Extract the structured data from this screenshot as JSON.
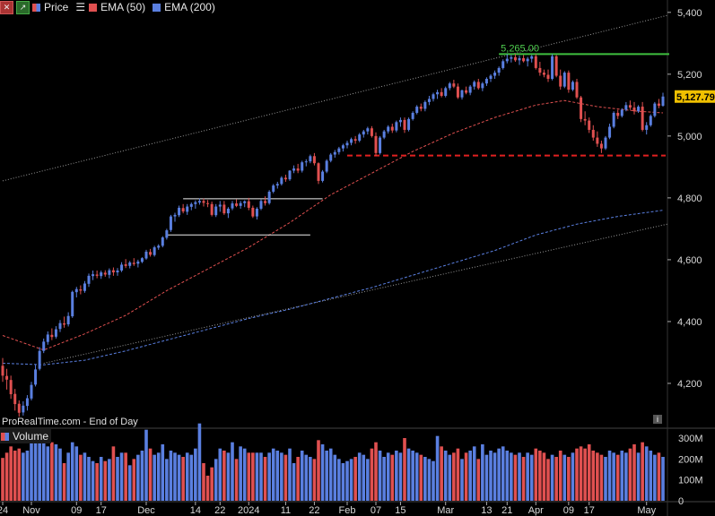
{
  "legend": {
    "price_label": "Price",
    "ema50_label": "EMA (50)",
    "ema200_label": "EMA (200)",
    "colors": {
      "up": "#5a7fe0",
      "down": "#e05050",
      "ema50": "#e05050",
      "ema200": "#5a7fe0"
    }
  },
  "watermark": "ProRealTime.com - End of Day",
  "volume_label": "Volume",
  "annotations": {
    "resistance_label": "5,265.00",
    "last_price_label": "5,127.79"
  },
  "chart_data": {
    "type": "candlestick",
    "y_ticks": [
      "5,400",
      "5,200",
      "5,000",
      "4,800",
      "4,600",
      "4,400",
      "4,200"
    ],
    "y_tick_values": [
      5400,
      5200,
      5000,
      4800,
      4600,
      4400,
      4200
    ],
    "ylim": [
      4055,
      5440
    ],
    "volume_ticks": [
      "300M",
      "200M",
      "100M",
      "0"
    ],
    "volume_tick_values": [
      300,
      200,
      100,
      0
    ],
    "x_labels": [
      "24",
      "Nov",
      "09",
      "17",
      "Dec",
      "14",
      "22",
      "2024",
      "11",
      "22",
      "Feb",
      "07",
      "15",
      "Mar",
      "13",
      "21",
      "Apr",
      "09",
      "17",
      "May"
    ],
    "x_label_bars": [
      0,
      7,
      18,
      24,
      35,
      47,
      53,
      60,
      69,
      76,
      84,
      91,
      97,
      108,
      118,
      123,
      130,
      138,
      143,
      157
    ],
    "resistance_level": 5265,
    "support_level": 4937,
    "last_price": 5127.79,
    "channel_upper": [
      {
        "bar": 0,
        "value": 4855
      },
      {
        "bar": 162,
        "value": 5390
      }
    ],
    "channel_lower": [
      {
        "bar": 10,
        "value": 4265
      },
      {
        "bar": 162,
        "value": 4715
      }
    ],
    "consolidation_box": {
      "top": 4797,
      "bottom": 4680,
      "bar_start": 40,
      "bar_end": 78
    },
    "ema50": [
      [
        0,
        4355
      ],
      [
        10,
        4308
      ],
      [
        20,
        4360
      ],
      [
        30,
        4420
      ],
      [
        40,
        4500
      ],
      [
        50,
        4570
      ],
      [
        60,
        4640
      ],
      [
        70,
        4720
      ],
      [
        80,
        4810
      ],
      [
        90,
        4880
      ],
      [
        100,
        4950
      ],
      [
        110,
        5010
      ],
      [
        120,
        5060
      ],
      [
        130,
        5100
      ],
      [
        137,
        5115
      ],
      [
        145,
        5095
      ],
      [
        155,
        5080
      ],
      [
        161,
        5075
      ]
    ],
    "ema200": [
      [
        0,
        4265
      ],
      [
        10,
        4260
      ],
      [
        20,
        4275
      ],
      [
        30,
        4305
      ],
      [
        40,
        4340
      ],
      [
        50,
        4375
      ],
      [
        60,
        4410
      ],
      [
        70,
        4440
      ],
      [
        80,
        4475
      ],
      [
        90,
        4510
      ],
      [
        100,
        4550
      ],
      [
        110,
        4590
      ],
      [
        120,
        4630
      ],
      [
        130,
        4680
      ],
      [
        140,
        4715
      ],
      [
        150,
        4740
      ],
      [
        161,
        4760
      ]
    ],
    "candles": [
      [
        4257,
        4282,
        4205,
        4225,
        205
      ],
      [
        4224,
        4247,
        4180,
        4212,
        230
      ],
      [
        4211,
        4225,
        4150,
        4165,
        260
      ],
      [
        4166,
        4182,
        4112,
        4133,
        240
      ],
      [
        4134,
        4145,
        4092,
        4105,
        250
      ],
      [
        4106,
        4142,
        4096,
        4128,
        230
      ],
      [
        4127,
        4162,
        4112,
        4152,
        240
      ],
      [
        4151,
        4205,
        4145,
        4195,
        280
      ],
      [
        4196,
        4262,
        4190,
        4245,
        290
      ],
      [
        4247,
        4317,
        4242,
        4305,
        300
      ],
      [
        4305,
        4345,
        4298,
        4335,
        290
      ],
      [
        4334,
        4368,
        4325,
        4358,
        260
      ],
      [
        4357,
        4378,
        4340,
        4350,
        280
      ],
      [
        4351,
        4385,
        4345,
        4375,
        270
      ],
      [
        4376,
        4405,
        4366,
        4395,
        250
      ],
      [
        4394,
        4416,
        4380,
        4390,
        180
      ],
      [
        4391,
        4430,
        4384,
        4418,
        230
      ],
      [
        4417,
        4500,
        4412,
        4496,
        280
      ],
      [
        4495,
        4512,
        4478,
        4505,
        260
      ],
      [
        4504,
        4517,
        4488,
        4500,
        220
      ],
      [
        4499,
        4531,
        4493,
        4523,
        230
      ],
      [
        4522,
        4555,
        4512,
        4548,
        210
      ],
      [
        4547,
        4565,
        4534,
        4553,
        190
      ],
      [
        4552,
        4565,
        4540,
        4548,
        180
      ],
      [
        4547,
        4565,
        4538,
        4559,
        210
      ],
      [
        4558,
        4566,
        4545,
        4552,
        190
      ],
      [
        4551,
        4572,
        4540,
        4566,
        200
      ],
      [
        4566,
        4575,
        4548,
        4559,
        260
      ],
      [
        4559,
        4573,
        4548,
        4565,
        210
      ],
      [
        4565,
        4592,
        4560,
        4584,
        230
      ],
      [
        4585,
        4602,
        4573,
        4580,
        230
      ],
      [
        4580,
        4596,
        4572,
        4591,
        170
      ],
      [
        4590,
        4605,
        4580,
        4586,
        200
      ],
      [
        4587,
        4600,
        4575,
        4594,
        220
      ],
      [
        4593,
        4608,
        4589,
        4605,
        240
      ],
      [
        4604,
        4632,
        4600,
        4626,
        340
      ],
      [
        4625,
        4635,
        4610,
        4616,
        250
      ],
      [
        4615,
        4645,
        4610,
        4640,
        220
      ],
      [
        4639,
        4650,
        4632,
        4645,
        230
      ],
      [
        4645,
        4676,
        4640,
        4672,
        270
      ],
      [
        4671,
        4700,
        4665,
        4695,
        200
      ],
      [
        4696,
        4745,
        4690,
        4740,
        240
      ],
      [
        4740,
        4752,
        4723,
        4745,
        230
      ],
      [
        4744,
        4775,
        4738,
        4768,
        220
      ],
      [
        4767,
        4780,
        4750,
        4756,
        210
      ],
      [
        4755,
        4780,
        4745,
        4772,
        230
      ],
      [
        4771,
        4785,
        4760,
        4780,
        220
      ],
      [
        4780,
        4792,
        4765,
        4786,
        250
      ],
      [
        4785,
        4798,
        4778,
        4790,
        370
      ],
      [
        4790,
        4798,
        4772,
        4784,
        180
      ],
      [
        4783,
        4793,
        4770,
        4780,
        120
      ],
      [
        4780,
        4788,
        4740,
        4745,
        160
      ],
      [
        4744,
        4780,
        4738,
        4772,
        200
      ],
      [
        4772,
        4790,
        4755,
        4778,
        250
      ],
      [
        4778,
        4790,
        4745,
        4750,
        240
      ],
      [
        4750,
        4770,
        4735,
        4765,
        230
      ],
      [
        4766,
        4790,
        4760,
        4782,
        280
      ],
      [
        4782,
        4795,
        4770,
        4774,
        200
      ],
      [
        4774,
        4790,
        4765,
        4783,
        260
      ],
      [
        4783,
        4792,
        4770,
        4789,
        250
      ],
      [
        4789,
        4800,
        4760,
        4768,
        230
      ],
      [
        4768,
        4775,
        4735,
        4740,
        230
      ],
      [
        4740,
        4770,
        4730,
        4765,
        230
      ],
      [
        4765,
        4795,
        4760,
        4790,
        230
      ],
      [
        4790,
        4805,
        4775,
        4783,
        210
      ],
      [
        4783,
        4825,
        4778,
        4820,
        230
      ],
      [
        4820,
        4845,
        4815,
        4840,
        250
      ],
      [
        4840,
        4852,
        4830,
        4845,
        240
      ],
      [
        4845,
        4870,
        4840,
        4865,
        230
      ],
      [
        4865,
        4875,
        4852,
        4860,
        220
      ],
      [
        4860,
        4890,
        4855,
        4888,
        250
      ],
      [
        4888,
        4905,
        4880,
        4895,
        180
      ],
      [
        4895,
        4910,
        4880,
        4888,
        210
      ],
      [
        4888,
        4920,
        4882,
        4915,
        240
      ],
      [
        4915,
        4925,
        4902,
        4918,
        220
      ],
      [
        4918,
        4940,
        4912,
        4935,
        210
      ],
      [
        4935,
        4945,
        4905,
        4912,
        200
      ],
      [
        4912,
        4915,
        4845,
        4855,
        290
      ],
      [
        4855,
        4890,
        4850,
        4885,
        270
      ],
      [
        4885,
        4925,
        4880,
        4920,
        240
      ],
      [
        4920,
        4945,
        4915,
        4940,
        250
      ],
      [
        4940,
        4955,
        4930,
        4948,
        220
      ],
      [
        4948,
        4965,
        4940,
        4960,
        200
      ],
      [
        4960,
        4975,
        4950,
        4970,
        180
      ],
      [
        4970,
        4985,
        4960,
        4978,
        190
      ],
      [
        4978,
        4995,
        4970,
        4990,
        200
      ],
      [
        4990,
        5000,
        4975,
        4985,
        210
      ],
      [
        4985,
        5010,
        4980,
        5005,
        230
      ],
      [
        5005,
        5020,
        4995,
        5015,
        220
      ],
      [
        5015,
        5030,
        5005,
        5025,
        200
      ],
      [
        5025,
        5032,
        4995,
        5000,
        250
      ],
      [
        5000,
        5012,
        4935,
        4945,
        280
      ],
      [
        4945,
        5000,
        4940,
        4995,
        240
      ],
      [
        4995,
        5020,
        4990,
        5015,
        210
      ],
      [
        5015,
        5035,
        5008,
        5030,
        230
      ],
      [
        5030,
        5040,
        5010,
        5018,
        220
      ],
      [
        5018,
        5050,
        5012,
        5045,
        240
      ],
      [
        5045,
        5060,
        5030,
        5052,
        230
      ],
      [
        5052,
        5060,
        5010,
        5020,
        300
      ],
      [
        5020,
        5060,
        5015,
        5055,
        250
      ],
      [
        5055,
        5080,
        5050,
        5075,
        240
      ],
      [
        5075,
        5100,
        5070,
        5095,
        230
      ],
      [
        5095,
        5105,
        5080,
        5088,
        220
      ],
      [
        5088,
        5115,
        5080,
        5110,
        210
      ],
      [
        5110,
        5130,
        5100,
        5120,
        200
      ],
      [
        5120,
        5140,
        5112,
        5135,
        190
      ],
      [
        5135,
        5150,
        5120,
        5142,
        310
      ],
      [
        5142,
        5155,
        5125,
        5130,
        260
      ],
      [
        5130,
        5160,
        5125,
        5155,
        240
      ],
      [
        5155,
        5175,
        5148,
        5170,
        220
      ],
      [
        5170,
        5182,
        5155,
        5160,
        230
      ],
      [
        5160,
        5170,
        5120,
        5125,
        250
      ],
      [
        5125,
        5150,
        5118,
        5148,
        200
      ],
      [
        5148,
        5160,
        5135,
        5140,
        230
      ],
      [
        5140,
        5165,
        5132,
        5160,
        240
      ],
      [
        5160,
        5180,
        5150,
        5175,
        260
      ],
      [
        5175,
        5185,
        5150,
        5155,
        200
      ],
      [
        5155,
        5175,
        5145,
        5170,
        270
      ],
      [
        5170,
        5190,
        5162,
        5185,
        220
      ],
      [
        5185,
        5200,
        5175,
        5195,
        240
      ],
      [
        5195,
        5212,
        5185,
        5205,
        230
      ],
      [
        5205,
        5225,
        5195,
        5220,
        250
      ],
      [
        5220,
        5248,
        5215,
        5242,
        260
      ],
      [
        5242,
        5265,
        5235,
        5250,
        240
      ],
      [
        5250,
        5262,
        5238,
        5255,
        230
      ],
      [
        5255,
        5265,
        5240,
        5245,
        220
      ],
      [
        5245,
        5260,
        5230,
        5252,
        230
      ],
      [
        5252,
        5262,
        5238,
        5242,
        210
      ],
      [
        5242,
        5256,
        5225,
        5250,
        230
      ],
      [
        5250,
        5262,
        5238,
        5258,
        220
      ],
      [
        5258,
        5265,
        5215,
        5220,
        250
      ],
      [
        5220,
        5240,
        5195,
        5205,
        240
      ],
      [
        5205,
        5215,
        5190,
        5198,
        230
      ],
      [
        5198,
        5215,
        5175,
        5185,
        200
      ],
      [
        5185,
        5265,
        5180,
        5258,
        220
      ],
      [
        5258,
        5262,
        5190,
        5195,
        210
      ],
      [
        5195,
        5215,
        5150,
        5160,
        240
      ],
      [
        5160,
        5210,
        5155,
        5205,
        220
      ],
      [
        5205,
        5212,
        5140,
        5150,
        210
      ],
      [
        5150,
        5180,
        5145,
        5175,
        230
      ],
      [
        5175,
        5185,
        5120,
        5125,
        250
      ],
      [
        5125,
        5130,
        5045,
        5055,
        260
      ],
      [
        5055,
        5080,
        5035,
        5050,
        250
      ],
      [
        5050,
        5060,
        5010,
        5020,
        270
      ],
      [
        5020,
        5035,
        4985,
        4995,
        240
      ],
      [
        4995,
        5015,
        4965,
        4975,
        230
      ],
      [
        4975,
        4985,
        4945,
        4960,
        220
      ],
      [
        4960,
        5000,
        4955,
        4995,
        210
      ],
      [
        4995,
        5040,
        4990,
        5030,
        240
      ],
      [
        5030,
        5080,
        5025,
        5075,
        230
      ],
      [
        5075,
        5085,
        5055,
        5065,
        220
      ],
      [
        5065,
        5090,
        5060,
        5085,
        240
      ],
      [
        5085,
        5110,
        5080,
        5100,
        230
      ],
      [
        5100,
        5115,
        5085,
        5092,
        250
      ],
      [
        5092,
        5110,
        5070,
        5080,
        270
      ],
      [
        5080,
        5100,
        5075,
        5095,
        230
      ],
      [
        5095,
        5110,
        5015,
        5020,
        280
      ],
      [
        5020,
        5045,
        5005,
        5035,
        260
      ],
      [
        5035,
        5070,
        5030,
        5065,
        240
      ],
      [
        5065,
        5110,
        5060,
        5105,
        220
      ],
      [
        5105,
        5120,
        5090,
        5098,
        230
      ],
      [
        5098,
        5140,
        5095,
        5127.79,
        210
      ]
    ]
  }
}
